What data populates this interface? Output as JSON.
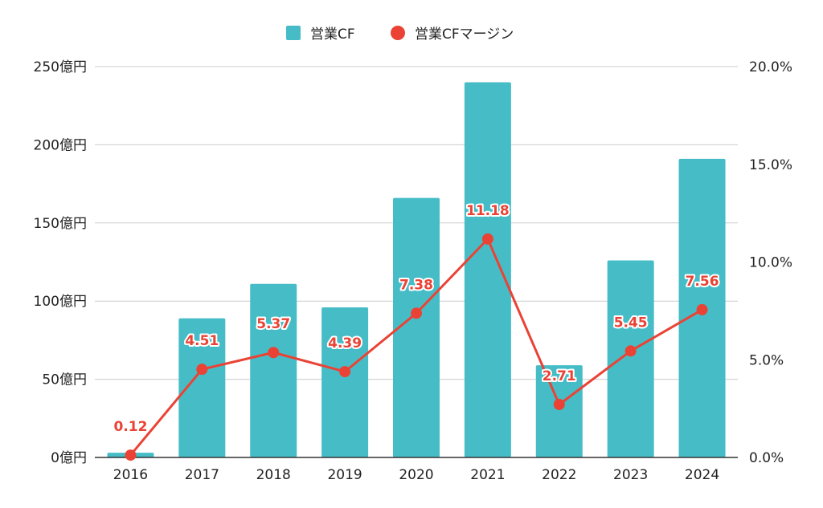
{
  "colors": {
    "bar": "#46bdc6",
    "line": "#ea4335",
    "grid": "#cccccc",
    "axis": "#333333",
    "text": "#222222"
  },
  "chart_data": {
    "type": "bar",
    "categories": [
      "2016",
      "2017",
      "2018",
      "2019",
      "2020",
      "2021",
      "2022",
      "2023",
      "2024"
    ],
    "series": [
      {
        "name": "営業CF",
        "type": "bar",
        "axis": "left",
        "values": [
          3,
          89,
          111,
          96,
          166,
          240,
          59,
          126,
          191
        ]
      },
      {
        "name": "営業CFマージン",
        "type": "line",
        "axis": "right",
        "values": [
          0.12,
          4.51,
          5.37,
          4.39,
          7.38,
          11.18,
          2.71,
          5.45,
          7.56
        ],
        "labels": [
          "0.12",
          "4.51",
          "5.37",
          "4.39",
          "7.38",
          "11.18",
          "2.71",
          "5.45",
          "7.56"
        ]
      }
    ],
    "y_left": {
      "ylim": [
        0,
        250
      ],
      "ticks": [
        "0億円",
        "50億円",
        "100億円",
        "150億円",
        "200億円",
        "250億円"
      ]
    },
    "y_right": {
      "ylim": [
        0,
        20
      ],
      "ticks": [
        "0.0%",
        "5.0%",
        "10.0%",
        "15.0%",
        "20.0%"
      ]
    },
    "grid": true,
    "legend": "top-center"
  }
}
